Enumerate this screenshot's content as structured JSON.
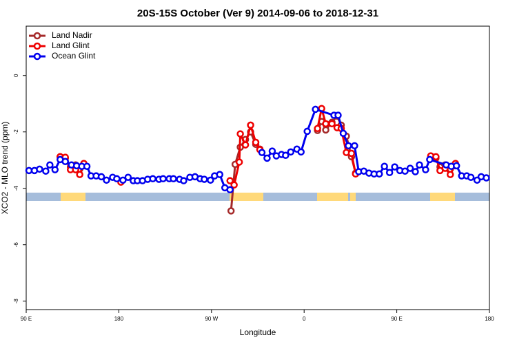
{
  "chart_data": {
    "type": "line",
    "title": "20S-15S October (Ver 9)   2014-09-06 to 2018-12-31",
    "x_label": "Longitude",
    "y_label": "XCO2 - MLO trend (ppm)",
    "xlim": [
      90,
      540
    ],
    "ylim": [
      -8.3,
      1.75
    ],
    "xticks": [
      {
        "value": 90,
        "label": "90 E"
      },
      180,
      {
        "value": 270,
        "label": "90 W"
      },
      {
        "value": 360,
        "label": "0"
      },
      {
        "value": 450,
        "label": "90 E"
      },
      {
        "value": 540,
        "label": "180"
      }
    ],
    "yticks": [
      0,
      -2,
      -4,
      -6,
      -8
    ],
    "legend": "top-left",
    "series": [
      {
        "name": "Land Nadir",
        "color": "#a52a2a",
        "x": [
          123,
          128,
          133,
          138,
          142,
          146,
          null,
          289,
          293,
          298,
          303,
          308,
          313,
          317,
          null,
          373,
          377,
          381,
          387,
          392,
          396,
          401,
          406,
          410,
          null,
          483,
          488,
          492,
          497,
          502,
          507
        ],
        "values": [
          -2.88,
          -2.93,
          -3.24,
          -3.17,
          -3.32,
          -3.2,
          null,
          -4.8,
          -3.15,
          -2.54,
          -2.27,
          -2.0,
          -2.44,
          -2.61,
          null,
          -1.95,
          -1.63,
          -1.93,
          -1.66,
          -1.44,
          -1.76,
          -2.15,
          -2.88,
          -3.46,
          null,
          -2.88,
          -2.93,
          -3.24,
          -3.17,
          -3.32,
          -3.2
        ]
      },
      {
        "name": "Land Glint",
        "color": "#ee0000",
        "x": [
          123,
          128,
          133,
          138,
          142,
          146,
          null,
          182,
          null,
          288,
          292,
          297,
          298,
          303,
          308,
          313,
          317,
          null,
          373,
          377,
          381,
          387,
          392,
          396,
          401,
          406,
          410,
          null,
          483,
          488,
          492,
          497,
          502,
          507
        ],
        "values": [
          -2.88,
          -2.9,
          -3.34,
          -3.34,
          -3.51,
          -3.12,
          null,
          -3.78,
          null,
          -3.73,
          -3.88,
          -3.07,
          -2.07,
          -2.46,
          -1.76,
          -2.37,
          -2.63,
          null,
          -1.88,
          -1.17,
          -1.71,
          -1.71,
          -1.85,
          -1.88,
          -2.73,
          -2.76,
          -3.49,
          null,
          -2.85,
          -2.88,
          -3.37,
          -3.29,
          -3.51,
          -3.12
        ]
      },
      {
        "name": "Ocean Glint",
        "color": "#0000ee",
        "x": [
          92.7,
          98,
          103,
          109,
          113,
          118,
          123,
          128,
          134,
          139,
          144,
          149,
          153,
          158,
          163,
          168,
          174,
          178,
          184,
          189,
          194,
          198,
          203,
          208,
          213,
          219,
          223,
          229,
          233,
          239,
          243,
          249,
          254,
          259,
          263,
          269,
          273,
          278,
          283,
          288,
          null,
          319,
          324,
          329,
          333,
          338,
          342,
          347,
          353,
          357,
          363,
          371,
          389,
          393,
          398,
          403,
          409,
          413,
          418,
          423,
          428,
          433,
          438,
          443,
          448,
          453,
          458,
          463,
          468,
          472,
          478,
          482,
          498,
          503,
          508,
          513,
          518,
          522,
          528,
          532,
          537
        ],
        "values": [
          -3.37,
          -3.37,
          -3.32,
          -3.39,
          -3.17,
          -3.34,
          -2.98,
          -3.05,
          -3.17,
          -3.2,
          -3.22,
          -3.22,
          -3.56,
          -3.56,
          -3.59,
          -3.71,
          -3.61,
          -3.66,
          -3.71,
          -3.61,
          -3.73,
          -3.73,
          -3.73,
          -3.68,
          -3.66,
          -3.68,
          -3.66,
          -3.66,
          -3.66,
          -3.68,
          -3.73,
          -3.61,
          -3.59,
          -3.66,
          -3.68,
          -3.71,
          -3.56,
          -3.51,
          -3.98,
          -4.05,
          null,
          -2.73,
          -2.93,
          -2.68,
          -2.85,
          -2.8,
          -2.83,
          -2.71,
          -2.61,
          -2.71,
          -1.98,
          -1.2,
          -1.41,
          -1.41,
          -2.05,
          -2.49,
          -2.49,
          -3.41,
          -3.39,
          -3.46,
          -3.49,
          -3.49,
          -3.22,
          -3.44,
          -3.24,
          -3.37,
          -3.39,
          -3.29,
          -3.41,
          -3.17,
          -3.34,
          -2.98,
          -3.17,
          -3.22,
          -3.2,
          -3.56,
          -3.56,
          -3.61,
          -3.71,
          -3.59,
          -3.63
        ]
      }
    ]
  }
}
